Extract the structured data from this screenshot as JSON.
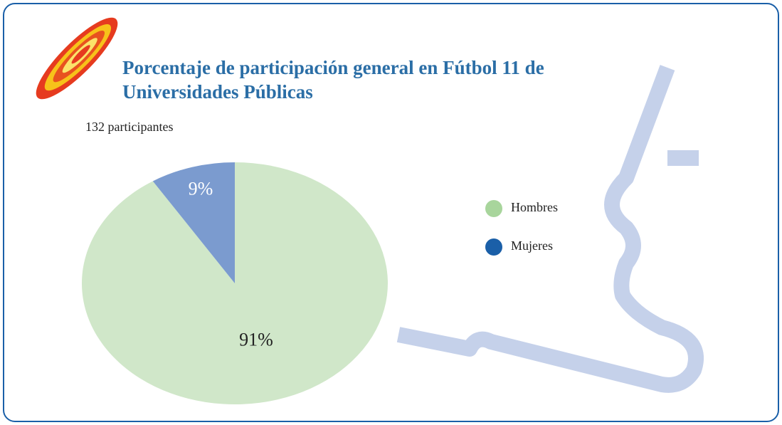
{
  "chart_data": {
    "type": "pie",
    "title": "Porcentaje de participación general en Fútbol 11 de Universidades Públicas",
    "subtitle": "132 participantes",
    "categories": [
      "Hombres",
      "Mujeres"
    ],
    "values": [
      91,
      9
    ],
    "value_labels": [
      "91%",
      "9%"
    ],
    "colors": [
      "#d0e7c9",
      "#7b9bcf"
    ],
    "legend_colors": [
      "#a8d59c",
      "#1a5fa8"
    ]
  }
}
